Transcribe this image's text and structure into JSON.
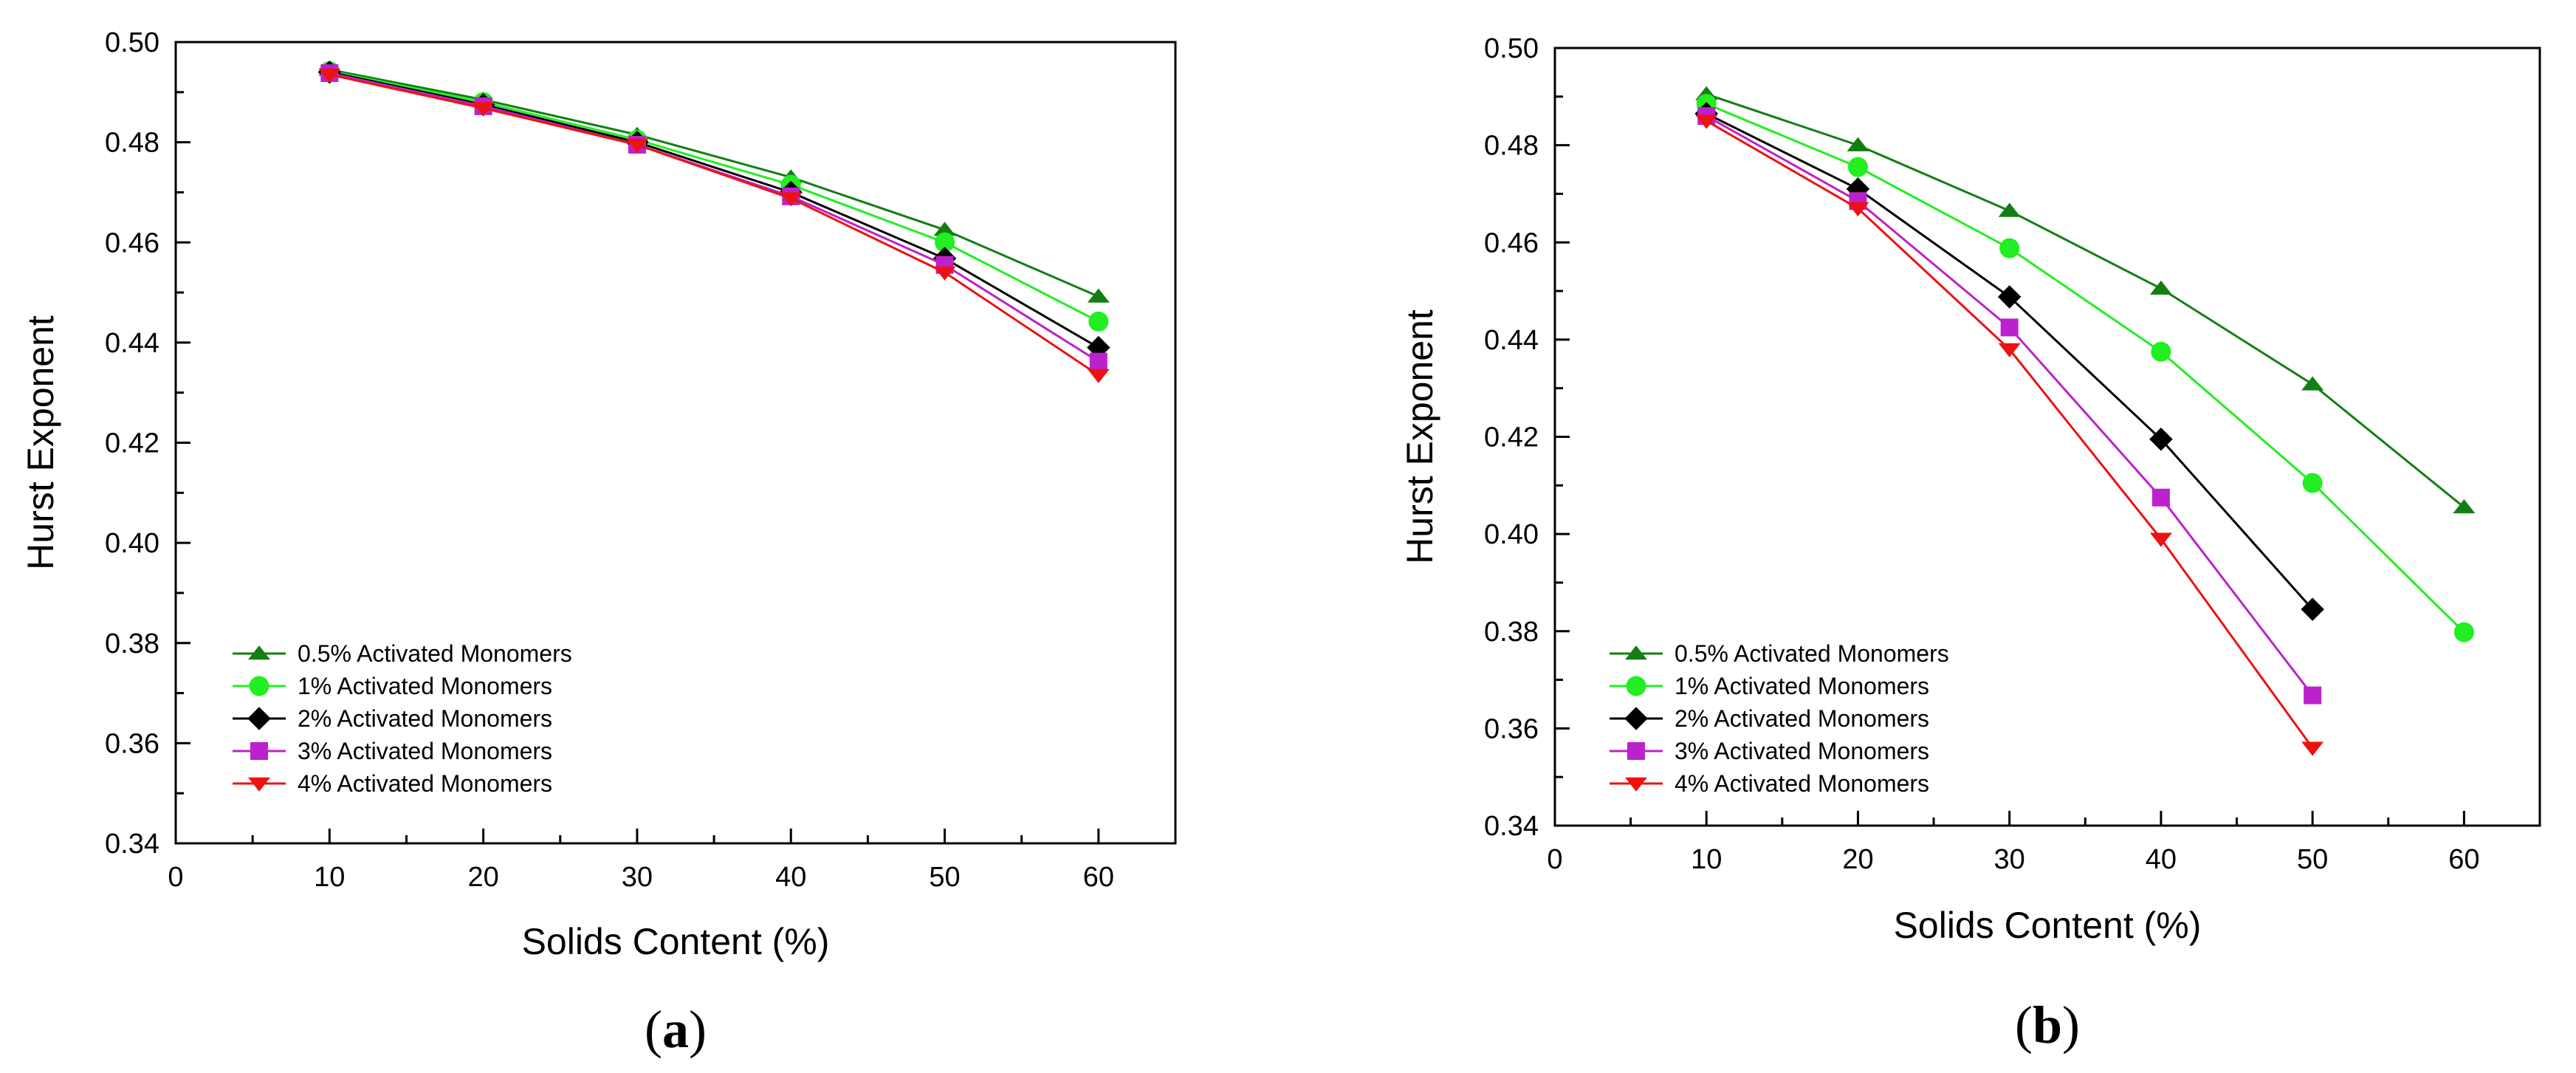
{
  "chart_data": [
    {
      "type": "line",
      "panel_label": "a",
      "title": "",
      "xlabel": "Solids Content (%)",
      "ylabel": "Hurst Exponent",
      "xlim": [
        0,
        65
      ],
      "ylim": [
        0.34,
        0.5
      ],
      "xticks": [
        0,
        10,
        20,
        30,
        40,
        50,
        60
      ],
      "xtick_labels": [
        "0",
        "10",
        "20",
        "30",
        "40",
        "50",
        "60"
      ],
      "yticks": [
        0.34,
        0.36,
        0.38,
        0.4,
        0.42,
        0.44,
        0.46,
        0.48,
        0.5
      ],
      "ytick_labels": [
        "0.34",
        "0.36",
        "0.38",
        "0.40",
        "0.42",
        "0.44",
        "0.46",
        "0.48",
        "0.50"
      ],
      "grid": false,
      "legend_position": "lower-left",
      "series": [
        {
          "name": "0.5% Activated Monomers",
          "color": "#137f13",
          "marker": "triangle-up",
          "x": [
            10,
            20,
            30,
            40,
            50,
            60
          ],
          "values": [
            0.4945,
            0.4885,
            0.4815,
            0.473,
            0.4625,
            0.4492
          ]
        },
        {
          "name": "1% Activated Monomers",
          "color": "#22ee22",
          "marker": "circle",
          "x": [
            10,
            20,
            30,
            40,
            50,
            60
          ],
          "values": [
            0.4942,
            0.488,
            0.4805,
            0.4715,
            0.46,
            0.4442
          ]
        },
        {
          "name": "2% Activated Monomers",
          "color": "#000000",
          "marker": "diamond",
          "x": [
            10,
            20,
            30,
            40,
            50,
            60
          ],
          "values": [
            0.494,
            0.4875,
            0.48,
            0.47,
            0.4568,
            0.439
          ]
        },
        {
          "name": "3% Activated Monomers",
          "color": "#bb22cc",
          "marker": "square",
          "x": [
            10,
            20,
            30,
            40,
            50,
            60
          ],
          "values": [
            0.4938,
            0.4872,
            0.4795,
            0.4692,
            0.4555,
            0.4362
          ]
        },
        {
          "name": "4% Activated Monomers",
          "color": "#ee1111",
          "marker": "triangle-down",
          "x": [
            10,
            20,
            30,
            40,
            50,
            60
          ],
          "values": [
            0.4935,
            0.4868,
            0.4795,
            0.4688,
            0.454,
            0.4335
          ]
        }
      ]
    },
    {
      "type": "line",
      "panel_label": "b",
      "title": "",
      "xlabel": "Solids Content (%)",
      "ylabel": "Hurst Exponent",
      "xlim": [
        0,
        65
      ],
      "ylim": [
        0.34,
        0.5
      ],
      "xticks": [
        0,
        10,
        20,
        30,
        40,
        50,
        60
      ],
      "xtick_labels": [
        "0",
        "10",
        "20",
        "30",
        "40",
        "50",
        "60"
      ],
      "yticks": [
        0.34,
        0.36,
        0.38,
        0.4,
        0.42,
        0.44,
        0.46,
        0.48,
        0.5
      ],
      "ytick_labels": [
        "0.34",
        "0.36",
        "0.38",
        "0.40",
        "0.42",
        "0.44",
        "0.46",
        "0.48",
        "0.50"
      ],
      "grid": false,
      "legend_position": "lower-left",
      "series": [
        {
          "name": "0.5% Activated Monomers",
          "color": "#137f13",
          "marker": "triangle-up",
          "x": [
            10,
            20,
            30,
            40,
            50,
            60
          ],
          "values": [
            0.4905,
            0.48,
            0.4665,
            0.4505,
            0.4308,
            0.4055
          ]
        },
        {
          "name": "1% Activated Monomers",
          "color": "#22ee22",
          "marker": "circle",
          "x": [
            10,
            20,
            30,
            40,
            50,
            60
          ],
          "values": [
            0.4885,
            0.4755,
            0.4588,
            0.4375,
            0.4105,
            0.3798
          ]
        },
        {
          "name": "2% Activated Monomers",
          "color": "#000000",
          "marker": "diamond",
          "x": [
            10,
            20,
            30,
            40,
            50
          ],
          "values": [
            0.4865,
            0.471,
            0.4488,
            0.4195,
            0.3845
          ]
        },
        {
          "name": "3% Activated Monomers",
          "color": "#bb22cc",
          "marker": "square",
          "x": [
            10,
            20,
            30,
            40,
            50
          ],
          "values": [
            0.486,
            0.4685,
            0.4425,
            0.4075,
            0.3668
          ]
        },
        {
          "name": "4% Activated Monomers",
          "color": "#ee1111",
          "marker": "triangle-down",
          "x": [
            10,
            20,
            30,
            40,
            50
          ],
          "values": [
            0.485,
            0.467,
            0.438,
            0.399,
            0.356
          ]
        }
      ]
    }
  ]
}
